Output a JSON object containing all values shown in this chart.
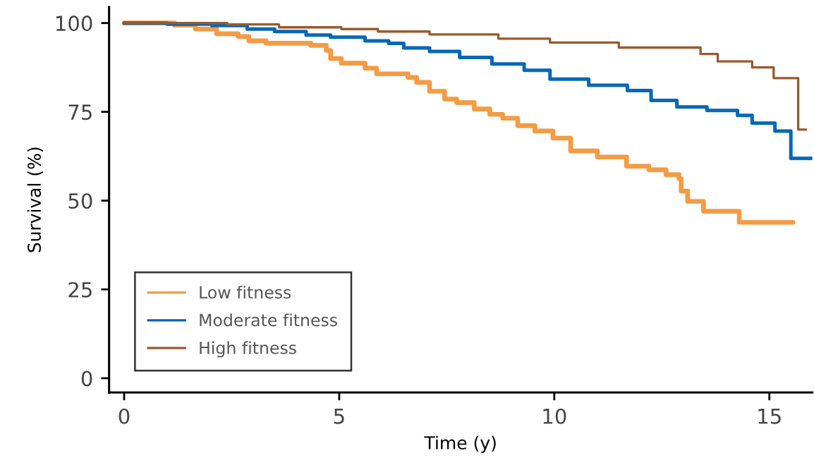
{
  "chart_data": {
    "type": "step",
    "xlabel": "Time (y)",
    "ylabel": "Survival (%)",
    "xlim": [
      -0.35,
      16.0
    ],
    "xticks": [
      0,
      5,
      10,
      15
    ],
    "ylim": [
      -4,
      104.5
    ],
    "yticks": [
      0,
      25,
      50,
      75,
      100
    ],
    "grid": false,
    "legend": "bottom left",
    "marker": "none",
    "line_style": "solid",
    "series": [
      {
        "name": "Low fitness",
        "color": "#f39c45",
        "x": [
          0,
          1.17,
          1.66,
          2.15,
          2.65,
          2.9,
          3.3,
          4.34,
          4.7,
          4.8,
          5.05,
          5.6,
          5.87,
          6.6,
          6.8,
          7.1,
          7.45,
          7.73,
          8.14,
          8.5,
          8.8,
          9.15,
          9.55,
          9.97,
          10.38,
          11.0,
          11.68,
          12.2,
          12.6,
          12.9,
          12.95,
          13.1,
          13.47,
          14.3,
          15.55
        ],
        "values": [
          100,
          99.4,
          98.3,
          97,
          96.2,
          95,
          94.3,
          93.7,
          92.3,
          90,
          88.7,
          87.3,
          85.7,
          84.7,
          83.3,
          80.8,
          78.6,
          77.6,
          75.8,
          74.3,
          73.2,
          71.1,
          69.6,
          67.6,
          64,
          62.3,
          59.7,
          58.7,
          57.3,
          56.2,
          52.7,
          49.8,
          47,
          43.9,
          43.9
        ]
      },
      {
        "name": "Moderate fitness",
        "color": "#0868b5",
        "x": [
          0,
          1.0,
          2.04,
          2.86,
          3.5,
          4.23,
          4.8,
          5.6,
          6.15,
          6.5,
          7.1,
          7.8,
          8.55,
          9.3,
          9.9,
          10.8,
          11.7,
          12.25,
          12.85,
          13.55,
          14.26,
          14.6,
          15.13,
          15.5,
          16.0
        ],
        "values": [
          100,
          99.7,
          99.3,
          98.3,
          97.6,
          96.6,
          96,
          95,
          94.3,
          93,
          92,
          90.3,
          88.5,
          86.7,
          84.2,
          82.5,
          81,
          78.2,
          76.4,
          75.4,
          74,
          71.8,
          69.6,
          61.9,
          61.9
        ]
      },
      {
        "name": "High fitness",
        "color": "#9a5a2c",
        "x": [
          0,
          2.4,
          3.6,
          5.05,
          5.9,
          7.1,
          8.7,
          9.9,
          11.5,
          13.4,
          13.8,
          14.6,
          15.1,
          15.67,
          15.85
        ],
        "values": [
          100,
          99.6,
          98.8,
          98.3,
          97.6,
          96.8,
          95.6,
          94.5,
          93.1,
          91.3,
          89.2,
          87.5,
          84.5,
          70,
          70
        ]
      }
    ]
  }
}
